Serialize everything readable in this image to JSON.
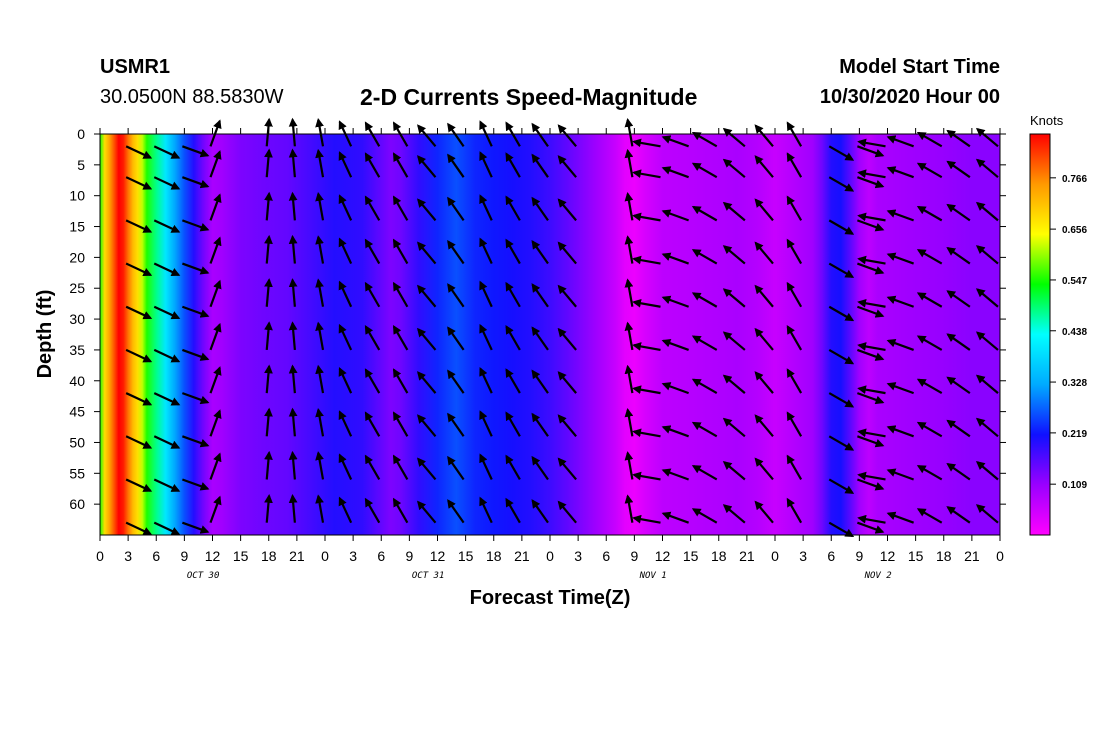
{
  "header": {
    "station": "USMR1",
    "coords": "30.0500N 88.5830W",
    "title": "2-D Currents Speed-Magnitude",
    "model_start_label": "Model Start Time",
    "model_start_value": "10/30/2020 Hour 00"
  },
  "chart_data": {
    "type": "heatmap",
    "title": "2-D Currents Speed-Magnitude",
    "xlabel": "Forecast Time(Z)",
    "ylabel": "Depth (ft)",
    "x_hours_range": [
      0,
      96
    ],
    "y_range": [
      0,
      65
    ],
    "x_tick_labels": [
      "0",
      "3",
      "6",
      "9",
      "12",
      "15",
      "18",
      "21",
      "0",
      "3",
      "6",
      "9",
      "12",
      "15",
      "18",
      "21",
      "0",
      "3",
      "6",
      "9",
      "12",
      "15",
      "18",
      "21",
      "0",
      "3",
      "6",
      "9",
      "12",
      "15",
      "18",
      "21",
      "0"
    ],
    "day_labels": [
      {
        "label": "OCT 30",
        "hour": 11
      },
      {
        "label": "OCT 31",
        "hour": 35
      },
      {
        "label": "NOV 1",
        "hour": 59
      },
      {
        "label": "NOV 2",
        "hour": 83
      }
    ],
    "y_ticks": [
      0,
      5,
      10,
      15,
      20,
      25,
      30,
      35,
      40,
      45,
      50,
      55,
      60
    ],
    "colorbar": {
      "unit": "Knots",
      "tick_labels": [
        "0.109",
        "0.219",
        "0.328",
        "0.438",
        "0.547",
        "0.656",
        "0.766"
      ],
      "tick_values": [
        0.109,
        0.219,
        0.328,
        0.438,
        0.547,
        0.656,
        0.766
      ],
      "range": [
        0.0,
        0.86
      ],
      "colors": [
        "#ff00ff",
        "#9a00ff",
        "#1010ff",
        "#00aaff",
        "#00ffff",
        "#00ff00",
        "#ffff00",
        "#ff9900",
        "#ff0000"
      ]
    },
    "speed_by_hour": [
      [
        0,
        0.55
      ],
      [
        0.5,
        0.68
      ],
      [
        1,
        0.74
      ],
      [
        1.5,
        0.8
      ],
      [
        2,
        0.86
      ],
      [
        2.5,
        0.84
      ],
      [
        3,
        0.78
      ],
      [
        3.5,
        0.72
      ],
      [
        4,
        0.68
      ],
      [
        4.5,
        0.62
      ],
      [
        5,
        0.55
      ],
      [
        6,
        0.48
      ],
      [
        7,
        0.4
      ],
      [
        8,
        0.32
      ],
      [
        9,
        0.26
      ],
      [
        10,
        0.2
      ],
      [
        11,
        0.14
      ],
      [
        12,
        0.09
      ],
      [
        13,
        0.1
      ],
      [
        15,
        0.13
      ],
      [
        17,
        0.14
      ],
      [
        20,
        0.15
      ],
      [
        22,
        0.17
      ],
      [
        25,
        0.2
      ],
      [
        28,
        0.19
      ],
      [
        30,
        0.15
      ],
      [
        31,
        0.13
      ],
      [
        32,
        0.14
      ],
      [
        34,
        0.19
      ],
      [
        36,
        0.23
      ],
      [
        38,
        0.26
      ],
      [
        40,
        0.23
      ],
      [
        42,
        0.22
      ],
      [
        44,
        0.21
      ],
      [
        46,
        0.2
      ],
      [
        48,
        0.18
      ],
      [
        50,
        0.15
      ],
      [
        53,
        0.1
      ],
      [
        55,
        0.06
      ],
      [
        56,
        0.03
      ],
      [
        57,
        0.02
      ],
      [
        58,
        0.04
      ],
      [
        60,
        0.07
      ],
      [
        64,
        0.08
      ],
      [
        68,
        0.09
      ],
      [
        70,
        0.08
      ],
      [
        72,
        0.06
      ],
      [
        74,
        0.08
      ],
      [
        76,
        0.1
      ],
      [
        77,
        0.14
      ],
      [
        78,
        0.2
      ],
      [
        79,
        0.21
      ],
      [
        80,
        0.16
      ],
      [
        81,
        0.1
      ],
      [
        82,
        0.07
      ],
      [
        83,
        0.09
      ],
      [
        86,
        0.1
      ],
      [
        90,
        0.11
      ],
      [
        93,
        0.12
      ],
      [
        96,
        0.12
      ]
    ],
    "vector_columns": [
      {
        "hour": 3,
        "angle_deg": 25
      },
      {
        "hour": 6,
        "angle_deg": 25
      },
      {
        "hour": 9,
        "angle_deg": 20
      },
      {
        "hour": 12,
        "angle_deg": -70
      },
      {
        "hour": 18,
        "angle_deg": -85
      },
      {
        "hour": 21,
        "angle_deg": -95
      },
      {
        "hour": 24,
        "angle_deg": -100
      },
      {
        "hour": 27,
        "angle_deg": -115
      },
      {
        "hour": 30,
        "angle_deg": -120
      },
      {
        "hour": 33,
        "angle_deg": -120
      },
      {
        "hour": 36,
        "angle_deg": -130
      },
      {
        "hour": 39,
        "angle_deg": -125
      },
      {
        "hour": 42,
        "angle_deg": -115
      },
      {
        "hour": 45,
        "angle_deg": -120
      },
      {
        "hour": 48,
        "angle_deg": -125
      },
      {
        "hour": 51,
        "angle_deg": -130
      },
      {
        "hour": 57,
        "angle_deg": -100
      },
      {
        "hour": 60,
        "angle_deg": -170
      },
      {
        "hour": 63,
        "angle_deg": -160
      },
      {
        "hour": 66,
        "angle_deg": -150
      },
      {
        "hour": 69,
        "angle_deg": -140
      },
      {
        "hour": 72,
        "angle_deg": -130
      },
      {
        "hour": 75,
        "angle_deg": -120
      },
      {
        "hour": 78,
        "angle_deg": 30
      },
      {
        "hour": 81,
        "angle_deg": 20
      },
      {
        "hour": 84,
        "angle_deg": -170
      },
      {
        "hour": 87,
        "angle_deg": -160
      },
      {
        "hour": 90,
        "angle_deg": -150
      },
      {
        "hour": 93,
        "angle_deg": -145
      },
      {
        "hour": 96,
        "angle_deg": -140
      }
    ],
    "vector_depths": [
      2,
      7,
      14,
      21,
      28,
      35,
      42,
      49,
      56,
      63
    ]
  }
}
